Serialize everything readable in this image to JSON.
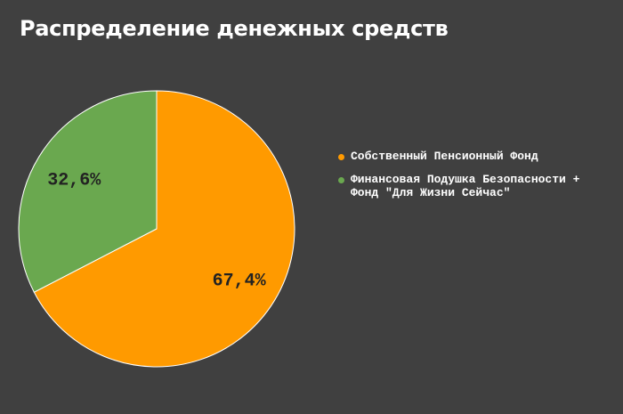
{
  "title": "Распределение денежных средств",
  "chart_data": {
    "type": "pie",
    "title": "Распределение денежных средств",
    "categories": [
      "Собственный Пенсионный Фонд",
      "Финансовая Подушка Безопасности + Фонд \"Для Жизни Сейчас\""
    ],
    "values": [
      67.4,
      32.6
    ],
    "data_labels": [
      "67,4%",
      "32,6%"
    ],
    "colors": [
      "#FF9A00",
      "#6AA84F"
    ],
    "legend_position": "right"
  }
}
